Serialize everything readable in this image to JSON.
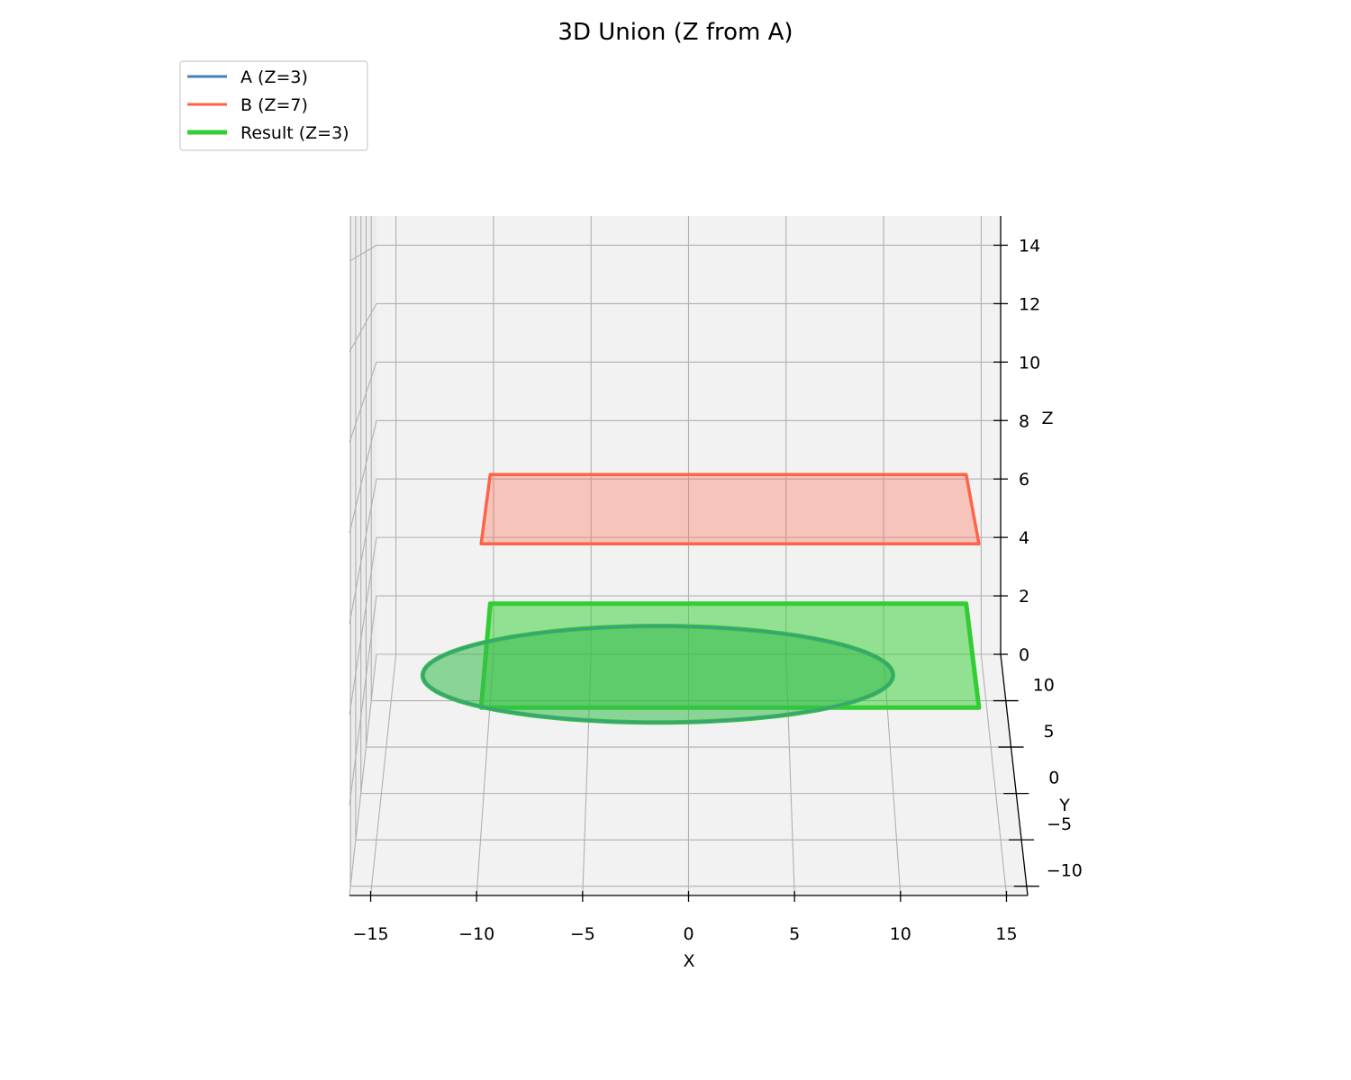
{
  "chart_data": {
    "type": "3d-polygon",
    "title": "3D Union (Z from A)",
    "xlabel": "X",
    "ylabel": "Y",
    "zlabel": "Z",
    "xlim": [
      -16,
      16
    ],
    "ylim": [
      -11,
      15
    ],
    "zlim": [
      0,
      15
    ],
    "x_ticks": [
      "−15",
      "−10",
      "−5",
      "0",
      "5",
      "10",
      "15"
    ],
    "x_tick_values": [
      -15,
      -10,
      -5,
      0,
      5,
      10,
      15
    ],
    "y_ticks": [
      "−10",
      "−5",
      "0",
      "5",
      "10"
    ],
    "y_tick_values": [
      -10,
      -5,
      0,
      5,
      10
    ],
    "z_ticks": [
      "0",
      "2",
      "4",
      "6",
      "8",
      "10",
      "12",
      "14"
    ],
    "z_tick_values": [
      0,
      2,
      4,
      6,
      8,
      10,
      12,
      14
    ],
    "legend_position": "top-left",
    "series": [
      {
        "name": "A (Z=3)",
        "color": "#4682b4",
        "shape": "ellipse",
        "z": 3,
        "center": [
          -1.5,
          0.5
        ],
        "radii": [
          11.5,
          6.5
        ]
      },
      {
        "name": "B (Z=7)",
        "color": "#ff6347",
        "shape": "rectangle",
        "z": 7,
        "x": [
          -10,
          14
        ],
        "y": [
          -4,
          10
        ]
      },
      {
        "name": "Result (Z=3)",
        "color": "#32cd32",
        "shape": "union",
        "z": 3,
        "rect_x": [
          -10,
          14
        ],
        "rect_y": [
          -4,
          10
        ]
      }
    ]
  }
}
